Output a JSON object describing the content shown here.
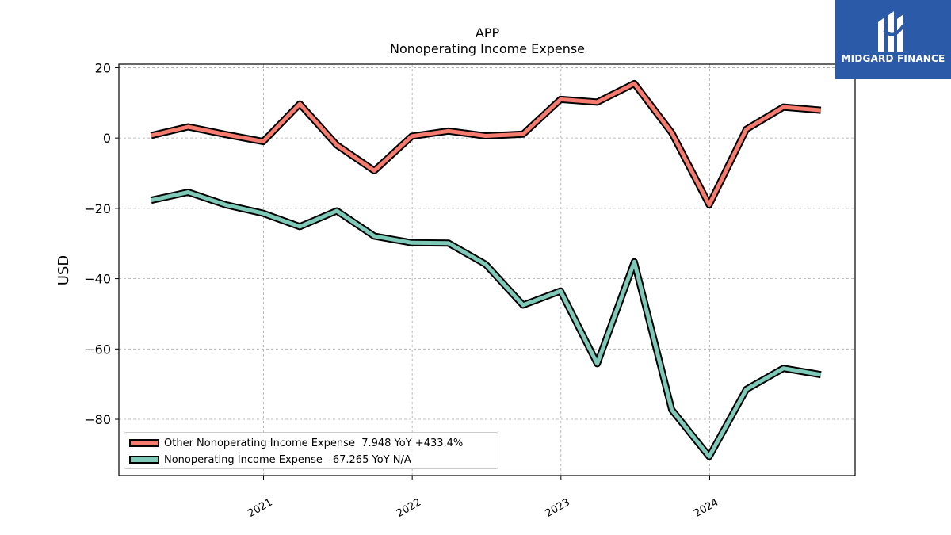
{
  "chart_data": {
    "type": "line",
    "title": "APP",
    "subtitle": "Nonoperating Income Expense",
    "xlabel": "",
    "ylabel": "USD",
    "x": [
      "2020-03-31",
      "2020-06-30",
      "2020-09-30",
      "2020-12-31",
      "2021-03-31",
      "2021-06-30",
      "2021-09-30",
      "2021-12-31",
      "2022-03-31",
      "2022-06-30",
      "2022-09-30",
      "2022-12-31",
      "2023-03-31",
      "2023-06-30",
      "2023-09-30",
      "2023-12-31",
      "2024-03-31",
      "2024-06-30",
      "2024-09-30"
    ],
    "xticks": [
      "2021",
      "2022",
      "2023",
      "2024"
    ],
    "yticks": [
      "20",
      "0",
      "−20",
      "−40",
      "−60",
      "−80"
    ],
    "ylim": [
      -96,
      21
    ],
    "grid": true,
    "legend_position": "lower-left",
    "series": [
      {
        "name": "Other Nonoperating Income Expense",
        "legend_label": "Other Nonoperating Income Expense  7.948 YoY +433.4%",
        "color": "#f47b6e",
        "values": [
          0.7,
          3.2,
          1.0,
          -1.0,
          9.7,
          -2.0,
          -9.3,
          0.5,
          2.0,
          0.6,
          1.1,
          11.0,
          10.2,
          15.5,
          1.5,
          -19.0,
          2.5,
          8.8,
          7.9
        ]
      },
      {
        "name": "Nonoperating Income Expense",
        "legend_label": "Nonoperating Income Expense  -67.265 YoY N/A",
        "color": "#7fc9b9",
        "values": [
          -17.7,
          -15.4,
          -19.0,
          -21.4,
          -25.2,
          -20.7,
          -27.9,
          -29.8,
          -29.9,
          -35.9,
          -47.5,
          -43.5,
          -64.2,
          -35.2,
          -77.3,
          -90.6,
          -71.5,
          -65.5,
          -67.3
        ]
      }
    ]
  },
  "logo": {
    "text": "MIDGARD FINANCE",
    "icon": "midgard-logo-icon",
    "background": "#2b5aa8"
  }
}
